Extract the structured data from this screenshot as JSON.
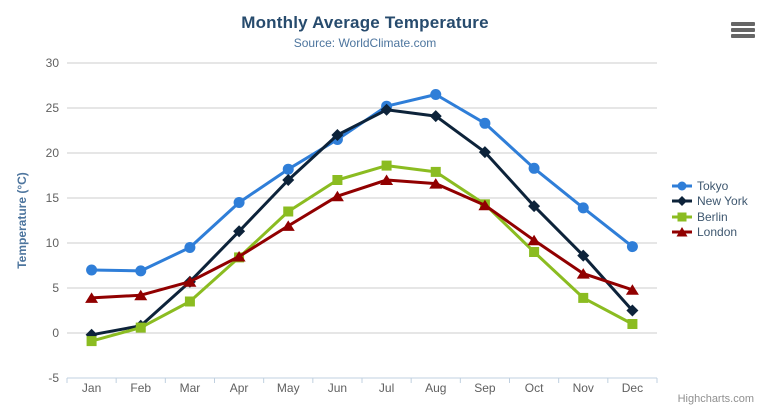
{
  "chart_data": {
    "type": "line",
    "title": "Monthly Average Temperature",
    "subtitle": "Source: WorldClimate.com",
    "categories": [
      "Jan",
      "Feb",
      "Mar",
      "Apr",
      "May",
      "Jun",
      "Jul",
      "Aug",
      "Sep",
      "Oct",
      "Nov",
      "Dec"
    ],
    "xlabel": "",
    "ylabel": "Temperature (°C)",
    "ylim": [
      -5,
      30
    ],
    "ytick_step": 5,
    "grid": true,
    "legend_position": "right",
    "series": [
      {
        "name": "Tokyo",
        "color": "#2f7ed8",
        "marker": "circle",
        "values": [
          7.0,
          6.9,
          9.5,
          14.5,
          18.2,
          21.5,
          25.2,
          26.5,
          23.3,
          18.3,
          13.9,
          9.6
        ]
      },
      {
        "name": "New York",
        "color": "#0d233a",
        "marker": "diamond",
        "values": [
          -0.2,
          0.8,
          5.7,
          11.3,
          17.0,
          22.0,
          24.8,
          24.1,
          20.1,
          14.1,
          8.6,
          2.5
        ]
      },
      {
        "name": "Berlin",
        "color": "#8bbc21",
        "marker": "square",
        "values": [
          -0.9,
          0.6,
          3.5,
          8.4,
          13.5,
          17.0,
          18.6,
          17.9,
          14.3,
          9.0,
          3.9,
          1.0
        ]
      },
      {
        "name": "London",
        "color": "#910000",
        "marker": "triangle",
        "values": [
          3.9,
          4.2,
          5.7,
          8.5,
          11.9,
          15.2,
          17.0,
          16.6,
          14.2,
          10.3,
          6.6,
          4.8
        ]
      }
    ]
  },
  "colors": {
    "title": "#274b6d",
    "subtitle": "#4d759e",
    "axis_title": "#4d759e",
    "axis_labels": "#606060",
    "legend_text": "#3e576f",
    "gridline": "#cccccc",
    "axis_line": "#c0d0e0",
    "credits": "#909090",
    "menu_icon": "#666666"
  },
  "credits": {
    "label": "Highcharts.com"
  },
  "export_menu": {
    "icon": "hamburger-menu-icon"
  }
}
